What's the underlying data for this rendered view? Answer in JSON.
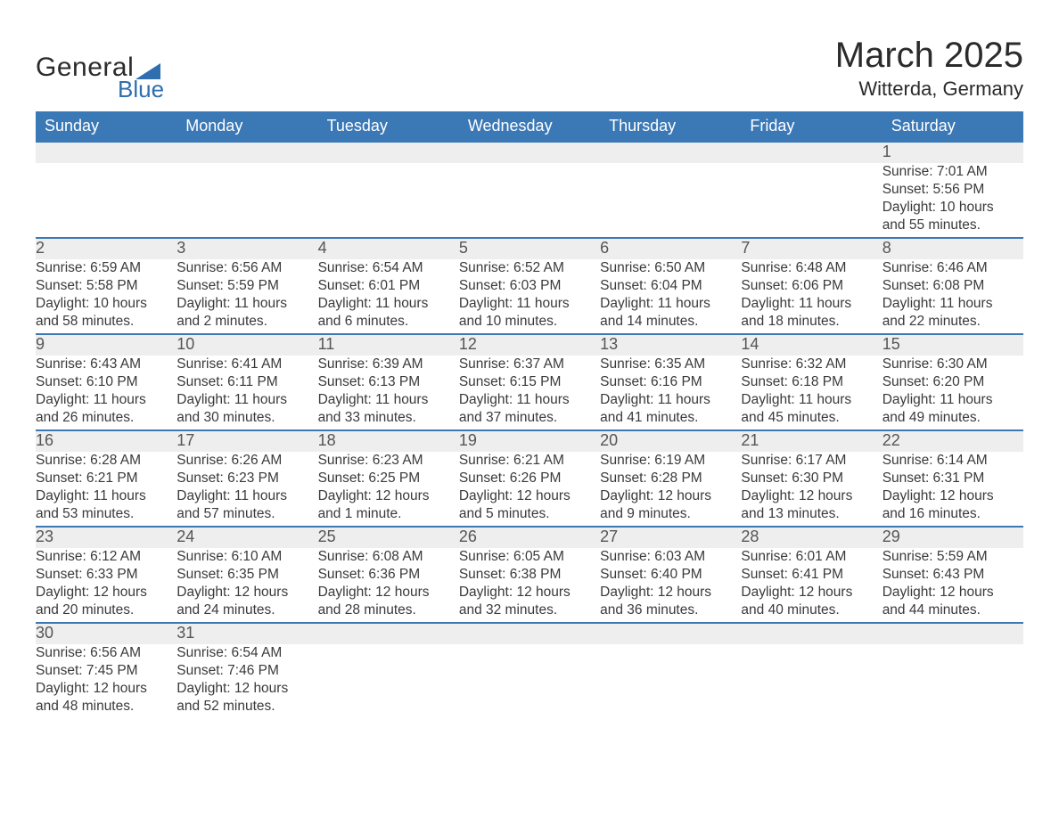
{
  "brand": {
    "word1": "General",
    "word2": "Blue"
  },
  "title": "March 2025",
  "location": "Witterda, Germany",
  "colors": {
    "header_bg": "#3b78b6",
    "header_fg": "#ffffff",
    "daynum_bg": "#eeeeee",
    "row_border": "#3b78b6",
    "text": "#3a3a3a",
    "brand_blue": "#2f6eaf",
    "page_bg": "#ffffff"
  },
  "typography": {
    "title_fontsize_pt": 30,
    "location_fontsize_pt": 16,
    "header_fontsize_pt": 13,
    "daynum_fontsize_pt": 13,
    "body_fontsize_pt": 11.5
  },
  "calendar": {
    "type": "table",
    "columns": [
      "Sunday",
      "Monday",
      "Tuesday",
      "Wednesday",
      "Thursday",
      "Friday",
      "Saturday"
    ],
    "weeks": [
      [
        null,
        null,
        null,
        null,
        null,
        null,
        {
          "n": "1",
          "sr": "Sunrise: 7:01 AM",
          "ss": "Sunset: 5:56 PM",
          "dl1": "Daylight: 10 hours",
          "dl2": "and 55 minutes."
        }
      ],
      [
        {
          "n": "2",
          "sr": "Sunrise: 6:59 AM",
          "ss": "Sunset: 5:58 PM",
          "dl1": "Daylight: 10 hours",
          "dl2": "and 58 minutes."
        },
        {
          "n": "3",
          "sr": "Sunrise: 6:56 AM",
          "ss": "Sunset: 5:59 PM",
          "dl1": "Daylight: 11 hours",
          "dl2": "and 2 minutes."
        },
        {
          "n": "4",
          "sr": "Sunrise: 6:54 AM",
          "ss": "Sunset: 6:01 PM",
          "dl1": "Daylight: 11 hours",
          "dl2": "and 6 minutes."
        },
        {
          "n": "5",
          "sr": "Sunrise: 6:52 AM",
          "ss": "Sunset: 6:03 PM",
          "dl1": "Daylight: 11 hours",
          "dl2": "and 10 minutes."
        },
        {
          "n": "6",
          "sr": "Sunrise: 6:50 AM",
          "ss": "Sunset: 6:04 PM",
          "dl1": "Daylight: 11 hours",
          "dl2": "and 14 minutes."
        },
        {
          "n": "7",
          "sr": "Sunrise: 6:48 AM",
          "ss": "Sunset: 6:06 PM",
          "dl1": "Daylight: 11 hours",
          "dl2": "and 18 minutes."
        },
        {
          "n": "8",
          "sr": "Sunrise: 6:46 AM",
          "ss": "Sunset: 6:08 PM",
          "dl1": "Daylight: 11 hours",
          "dl2": "and 22 minutes."
        }
      ],
      [
        {
          "n": "9",
          "sr": "Sunrise: 6:43 AM",
          "ss": "Sunset: 6:10 PM",
          "dl1": "Daylight: 11 hours",
          "dl2": "and 26 minutes."
        },
        {
          "n": "10",
          "sr": "Sunrise: 6:41 AM",
          "ss": "Sunset: 6:11 PM",
          "dl1": "Daylight: 11 hours",
          "dl2": "and 30 minutes."
        },
        {
          "n": "11",
          "sr": "Sunrise: 6:39 AM",
          "ss": "Sunset: 6:13 PM",
          "dl1": "Daylight: 11 hours",
          "dl2": "and 33 minutes."
        },
        {
          "n": "12",
          "sr": "Sunrise: 6:37 AM",
          "ss": "Sunset: 6:15 PM",
          "dl1": "Daylight: 11 hours",
          "dl2": "and 37 minutes."
        },
        {
          "n": "13",
          "sr": "Sunrise: 6:35 AM",
          "ss": "Sunset: 6:16 PM",
          "dl1": "Daylight: 11 hours",
          "dl2": "and 41 minutes."
        },
        {
          "n": "14",
          "sr": "Sunrise: 6:32 AM",
          "ss": "Sunset: 6:18 PM",
          "dl1": "Daylight: 11 hours",
          "dl2": "and 45 minutes."
        },
        {
          "n": "15",
          "sr": "Sunrise: 6:30 AM",
          "ss": "Sunset: 6:20 PM",
          "dl1": "Daylight: 11 hours",
          "dl2": "and 49 minutes."
        }
      ],
      [
        {
          "n": "16",
          "sr": "Sunrise: 6:28 AM",
          "ss": "Sunset: 6:21 PM",
          "dl1": "Daylight: 11 hours",
          "dl2": "and 53 minutes."
        },
        {
          "n": "17",
          "sr": "Sunrise: 6:26 AM",
          "ss": "Sunset: 6:23 PM",
          "dl1": "Daylight: 11 hours",
          "dl2": "and 57 minutes."
        },
        {
          "n": "18",
          "sr": "Sunrise: 6:23 AM",
          "ss": "Sunset: 6:25 PM",
          "dl1": "Daylight: 12 hours",
          "dl2": "and 1 minute."
        },
        {
          "n": "19",
          "sr": "Sunrise: 6:21 AM",
          "ss": "Sunset: 6:26 PM",
          "dl1": "Daylight: 12 hours",
          "dl2": "and 5 minutes."
        },
        {
          "n": "20",
          "sr": "Sunrise: 6:19 AM",
          "ss": "Sunset: 6:28 PM",
          "dl1": "Daylight: 12 hours",
          "dl2": "and 9 minutes."
        },
        {
          "n": "21",
          "sr": "Sunrise: 6:17 AM",
          "ss": "Sunset: 6:30 PM",
          "dl1": "Daylight: 12 hours",
          "dl2": "and 13 minutes."
        },
        {
          "n": "22",
          "sr": "Sunrise: 6:14 AM",
          "ss": "Sunset: 6:31 PM",
          "dl1": "Daylight: 12 hours",
          "dl2": "and 16 minutes."
        }
      ],
      [
        {
          "n": "23",
          "sr": "Sunrise: 6:12 AM",
          "ss": "Sunset: 6:33 PM",
          "dl1": "Daylight: 12 hours",
          "dl2": "and 20 minutes."
        },
        {
          "n": "24",
          "sr": "Sunrise: 6:10 AM",
          "ss": "Sunset: 6:35 PM",
          "dl1": "Daylight: 12 hours",
          "dl2": "and 24 minutes."
        },
        {
          "n": "25",
          "sr": "Sunrise: 6:08 AM",
          "ss": "Sunset: 6:36 PM",
          "dl1": "Daylight: 12 hours",
          "dl2": "and 28 minutes."
        },
        {
          "n": "26",
          "sr": "Sunrise: 6:05 AM",
          "ss": "Sunset: 6:38 PM",
          "dl1": "Daylight: 12 hours",
          "dl2": "and 32 minutes."
        },
        {
          "n": "27",
          "sr": "Sunrise: 6:03 AM",
          "ss": "Sunset: 6:40 PM",
          "dl1": "Daylight: 12 hours",
          "dl2": "and 36 minutes."
        },
        {
          "n": "28",
          "sr": "Sunrise: 6:01 AM",
          "ss": "Sunset: 6:41 PM",
          "dl1": "Daylight: 12 hours",
          "dl2": "and 40 minutes."
        },
        {
          "n": "29",
          "sr": "Sunrise: 5:59 AM",
          "ss": "Sunset: 6:43 PM",
          "dl1": "Daylight: 12 hours",
          "dl2": "and 44 minutes."
        }
      ],
      [
        {
          "n": "30",
          "sr": "Sunrise: 6:56 AM",
          "ss": "Sunset: 7:45 PM",
          "dl1": "Daylight: 12 hours",
          "dl2": "and 48 minutes."
        },
        {
          "n": "31",
          "sr": "Sunrise: 6:54 AM",
          "ss": "Sunset: 7:46 PM",
          "dl1": "Daylight: 12 hours",
          "dl2": "and 52 minutes."
        },
        null,
        null,
        null,
        null,
        null
      ]
    ]
  }
}
